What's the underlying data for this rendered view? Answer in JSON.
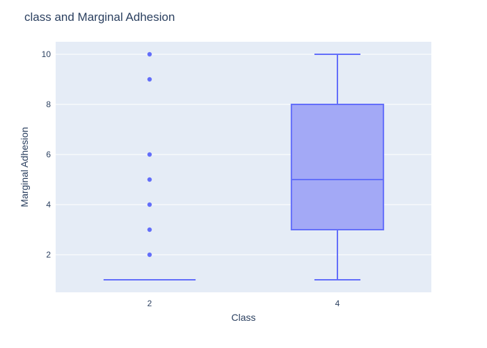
{
  "chart_data": {
    "type": "box",
    "title": "class and Marginal Adhesion",
    "xlabel": "Class",
    "ylabel": "Marginal Adhesion",
    "categories": [
      "2",
      "4"
    ],
    "ylim": [
      0.5,
      10.5
    ],
    "yticks": [
      2,
      4,
      6,
      8,
      10
    ],
    "grid": true,
    "legend": "none",
    "colors": {
      "plot_bg": "#e5ecf6",
      "grid": "#ffffff",
      "box_line": "#636efa",
      "box_fill": "#a3a9f6",
      "text": "#2a3f5f"
    },
    "boxes": [
      {
        "category": "2",
        "min": 1,
        "q1": 1,
        "median": 1,
        "q3": 1,
        "max": 1,
        "outliers": [
          2,
          3,
          4,
          5,
          6,
          9,
          10
        ]
      },
      {
        "category": "4",
        "min": 1,
        "q1": 3,
        "median": 5,
        "q3": 8,
        "max": 10,
        "outliers": []
      }
    ]
  }
}
